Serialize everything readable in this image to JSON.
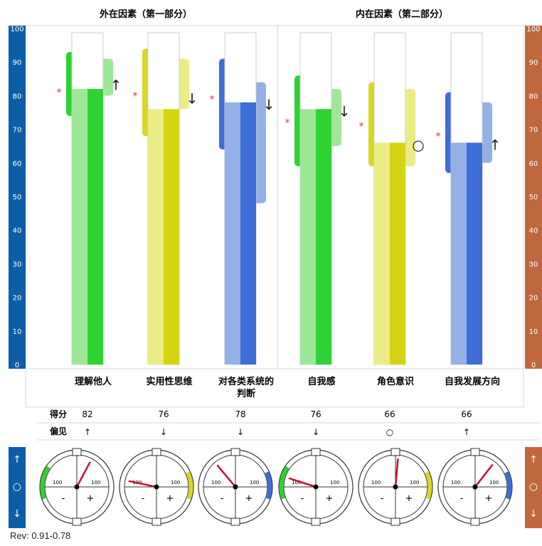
{
  "sections": [
    {
      "title": "外在因素（第一部分）"
    },
    {
      "title": "内在因素（第二部分）"
    }
  ],
  "left_axis_color": "#0d5ea8",
  "right_axis_color": "#c0673f",
  "chart_data": {
    "type": "bar",
    "yticks": [
      0,
      10,
      20,
      30,
      40,
      50,
      60,
      70,
      80,
      90,
      100
    ],
    "ylim": [
      0,
      100
    ],
    "categories": [
      {
        "lines": [
          "理解他人"
        ],
        "score": 82,
        "bias": "↑",
        "marker": "↑",
        "reference": 81,
        "band_outer": [
          74,
          93
        ],
        "band_inner": [
          80,
          91
        ],
        "bias_label": "↑",
        "dial_angle": 28,
        "dial_arc": "left",
        "color_light": "#9fe89a",
        "color_dark": "#2fd133",
        "color_band": "#2fd133",
        "color_band_light": "#9fe89a"
      },
      {
        "lines": [
          "实用性思维"
        ],
        "score": 76,
        "bias": "↓",
        "marker": "↓",
        "reference": 80,
        "band_outer": [
          68,
          94
        ],
        "band_inner": [
          76,
          91
        ],
        "bias_label": "↓",
        "dial_angle": -78,
        "dial_arc": "right",
        "color_light": "#ecec86",
        "color_dark": "#d4d414",
        "color_band": "#d7d725",
        "color_band_light": "#ecec86"
      },
      {
        "lines": [
          "对各类系统的",
          "判断"
        ],
        "score": 78,
        "bias": "↓",
        "marker": "↓",
        "reference": 79,
        "band_outer": [
          64,
          91
        ],
        "band_inner": [
          48,
          84
        ],
        "bias_label": "↓",
        "dial_angle": -40,
        "dial_arc": "right",
        "color_light": "#94b0e6",
        "color_dark": "#3d6dd6",
        "color_band": "#3d6dd6",
        "color_band_light": "#94b0e6"
      },
      {
        "lines": [
          "自我感"
        ],
        "score": 76,
        "bias": "↓",
        "marker": "↓",
        "reference": 72,
        "band_outer": [
          59,
          86
        ],
        "band_inner": [
          65,
          82
        ],
        "bias_label": "↓",
        "dial_angle": -72,
        "dial_arc": "left",
        "color_light": "#9fe89a",
        "color_dark": "#2fd133",
        "color_band": "#2fd133",
        "color_band_light": "#9fe89a"
      },
      {
        "lines": [
          "角色意识"
        ],
        "score": 66,
        "bias": "○",
        "marker": "○",
        "reference": 71,
        "band_outer": [
          59,
          84
        ],
        "band_inner": [
          59,
          82
        ],
        "bias_label": "○",
        "dial_angle": 5,
        "dial_arc": "right",
        "color_light": "#ecec86",
        "color_dark": "#d4d414",
        "color_band": "#d7d725",
        "color_band_light": "#ecec86"
      },
      {
        "lines": [
          "自我发展方向"
        ],
        "score": 66,
        "bias": "↑",
        "marker": "↑",
        "reference": 68,
        "band_outer": [
          57,
          81
        ],
        "band_inner": [
          60,
          78
        ],
        "bias_label": "↑",
        "dial_angle": 38,
        "dial_arc": "right",
        "color_light": "#94b0e6",
        "color_dark": "#3d6dd6",
        "color_band": "#3d6dd6",
        "color_band_light": "#94b0e6"
      }
    ]
  },
  "table": {
    "score_label": "得分",
    "bias_label": "偏见"
  },
  "legend_side": {
    "up": "↑",
    "mid": "○",
    "down": "↓"
  },
  "dial": {
    "minus": "-",
    "plus": "+",
    "left_val": "100",
    "right_val": "100"
  },
  "footer": {
    "rev": "Rev: 0.91-0.78"
  }
}
